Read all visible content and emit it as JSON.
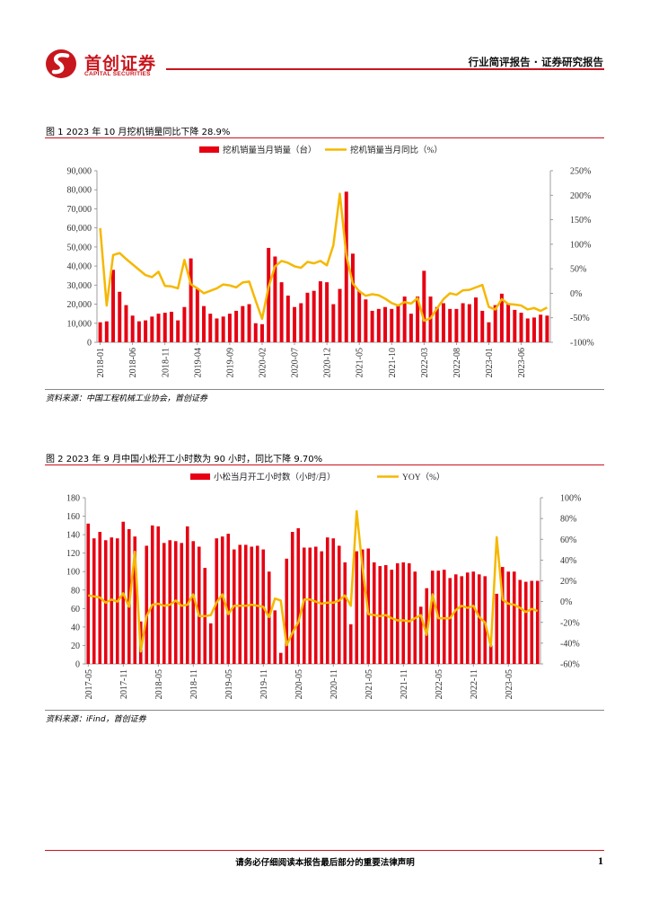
{
  "header": {
    "logo_cn": "首创证券",
    "logo_en": "CAPITAL SECURITIES",
    "report_type": "行业简评报告 · 证券研究报告"
  },
  "colors": {
    "brand_red": "#c8161d",
    "bar_red": "#e60012",
    "line_yellow": "#f5b800"
  },
  "figure1": {
    "title": "图 1 2023 年 10 月挖机销量同比下降 28.9%",
    "source": "资料来源：中国工程机械工业协会，首创证券"
  },
  "figure2": {
    "title": "图 2 2023 年 9 月中国小松开工小时数为 90 小时，同比下降 9.70%",
    "source": "资料来源：iFind，首创证券"
  },
  "chart_data": [
    {
      "type": "bar",
      "title": "图 1 2023 年 10 月挖机销量同比下降 28.9%",
      "legend_placement": "top-center",
      "x_tick_labels": [
        "2018-01",
        "2018-06",
        "2018-11",
        "2019-04",
        "2019-09",
        "2020-02",
        "2020-07",
        "2020-12",
        "2021-05",
        "2021-10",
        "2022-03",
        "2022-08",
        "2023-01",
        "2023-06"
      ],
      "y_left": {
        "ticks": [
          "0",
          "10,000",
          "20,000",
          "30,000",
          "40,000",
          "50,000",
          "60,000",
          "70,000",
          "80,000",
          "90,000"
        ],
        "ylim": [
          0,
          90000
        ]
      },
      "y_right": {
        "ticks": [
          "-100%",
          "-50%",
          "0%",
          "50%",
          "100%",
          "150%",
          "200%",
          "250%"
        ],
        "ylim": [
          -100,
          250
        ]
      },
      "series": [
        {
          "name": "挖机销量当月销量（台）",
          "kind": "bar",
          "axis": "left",
          "values": [
            10500,
            11000,
            38000,
            26500,
            19500,
            14000,
            11000,
            11500,
            13500,
            15000,
            15500,
            16000,
            11500,
            18500,
            44000,
            28000,
            19000,
            15000,
            12500,
            13500,
            15000,
            16500,
            19000,
            20000,
            10000,
            9500,
            49500,
            45000,
            31500,
            24500,
            18500,
            20500,
            26000,
            27000,
            32000,
            31500,
            20000,
            28000,
            79000,
            46500,
            27000,
            22500,
            16500,
            17500,
            18500,
            17500,
            19500,
            24000,
            15000,
            24000,
            37500,
            24000,
            18500,
            20500,
            17500,
            17500,
            20500,
            20000,
            23500,
            16500,
            10500,
            19500,
            25500,
            20500,
            17000,
            15500,
            12500,
            13000,
            14500,
            14000
          ]
        },
        {
          "name": "挖机销量当月同比（%）",
          "kind": "line",
          "axis": "right",
          "values": [
            133,
            -25,
            78,
            82,
            70,
            59,
            48,
            37,
            33,
            44,
            15,
            14,
            10,
            68,
            18,
            10,
            0,
            5,
            10,
            18,
            16,
            12,
            22,
            24,
            -15,
            -52,
            13,
            55,
            66,
            62,
            55,
            52,
            64,
            61,
            66,
            57,
            98,
            203,
            77,
            20,
            4,
            -5,
            -2,
            -4,
            -11,
            -20,
            -25,
            -18,
            -21,
            -10,
            -56,
            -51,
            -31,
            -12,
            0,
            -3,
            6,
            7,
            12,
            17,
            -28,
            -33,
            -12,
            -22,
            -23,
            -25,
            -33,
            -30,
            -36,
            -29
          ]
        }
      ]
    },
    {
      "type": "bar",
      "title": "图 2 2023 年 9 月中国小松开工小时数为 90 小时，同比下降 9.70%",
      "legend_placement": "top-center",
      "x_tick_labels": [
        "2017-05",
        "2017-11",
        "2018-05",
        "2018-11",
        "2019-05",
        "2019-11",
        "2020-05",
        "2020-11",
        "2021-05",
        "2021-11",
        "2022-05",
        "2022-11",
        "2023-05"
      ],
      "y_left": {
        "ticks": [
          "0",
          "20",
          "40",
          "60",
          "80",
          "100",
          "120",
          "140",
          "160",
          "180"
        ],
        "ylim": [
          0,
          180
        ]
      },
      "y_right": {
        "ticks": [
          "-60%",
          "-40%",
          "-20%",
          "0%",
          "20%",
          "40%",
          "60%",
          "80%",
          "100%"
        ],
        "ylim": [
          -60,
          100
        ]
      },
      "series": [
        {
          "name": "小松当月开工小时数（小时/月）",
          "kind": "bar",
          "axis": "left",
          "values": [
            152,
            136,
            143,
            134,
            137,
            136,
            154,
            146,
            138,
            46,
            128,
            150,
            149,
            131,
            134,
            133,
            131,
            149,
            133,
            127,
            104,
            44,
            136,
            138,
            141,
            124,
            129,
            129,
            127,
            128,
            124,
            100,
            58,
            12,
            114,
            143,
            147,
            126,
            126,
            127,
            122,
            137,
            136,
            128,
            110,
            43,
            122,
            124,
            125,
            110,
            106,
            107,
            102,
            109,
            110,
            109,
            100,
            62,
            82,
            101,
            101,
            102,
            93,
            97,
            95,
            99,
            100,
            97,
            95,
            20,
            76,
            105,
            100,
            100,
            91,
            89,
            90,
            90
          ]
        },
        {
          "name": "YOY（%）",
          "kind": "line",
          "axis": "right",
          "values": [
            6,
            5,
            4,
            -1,
            2,
            0,
            8,
            -5,
            48,
            -48,
            -14,
            -3,
            -2,
            -4,
            -3,
            1,
            -4,
            -3,
            7,
            -14,
            -14,
            -13,
            -1,
            7,
            -12,
            -4,
            -4,
            -4,
            -3,
            -4,
            -5,
            -15,
            3,
            1,
            -42,
            -30,
            -20,
            2,
            2,
            0,
            -2,
            -1,
            -1,
            1,
            6,
            -4,
            87,
            33,
            -12,
            -13,
            -14,
            -13,
            -16,
            -18,
            -18,
            -19,
            -16,
            -13,
            -32,
            7,
            -16,
            -16,
            -16,
            -8,
            -4,
            -6,
            -4,
            -15,
            -20,
            -43,
            62,
            2,
            -2,
            -3,
            -6,
            -10,
            -7,
            -9
          ]
        }
      ]
    }
  ]
}
